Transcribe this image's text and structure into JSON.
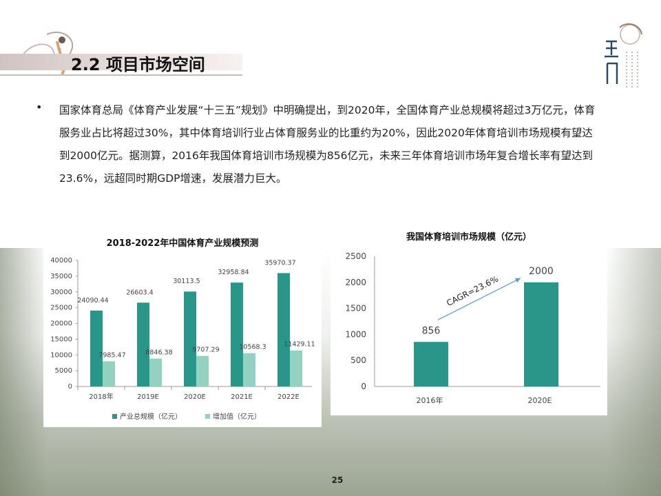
{
  "slide": {
    "title": "2.2 项目市场空间",
    "bullet": "国家体育总局《体育产业发展“十三五”规划》中明确提出，到2020年，全国体育产业总规模将超过3万亿元，体育服务业占比将超过30%，其中体育培训行业占体育服务业的比重约为20%，因此2020年体育培训市场规模有望达到2000亿元。据测算，2016年我国体育培训市场规模为856亿元，未来三年体育培训市场年复合增长率有望达到23.6%，远超同时期GDP增速，发展潜力巨大。",
    "page_number": "25"
  },
  "colors": {
    "teal": "#2a9589",
    "light_teal": "#93d2c1",
    "arrow": "#5b9bd5"
  },
  "chart_data": [
    {
      "type": "bar",
      "title": "2018-2022年中国体育产业规模预测",
      "categories": [
        "2018年",
        "2019E",
        "2020E",
        "2021E",
        "2022E"
      ],
      "series": [
        {
          "name": "产业总规模（亿元）",
          "values": [
            24090.44,
            26603.4,
            30113.5,
            32958.84,
            35970.37
          ],
          "labels": [
            "24090.44",
            "26603.4",
            "30113.5",
            "32958.84",
            "35970.37"
          ]
        },
        {
          "name": "增加值（亿元）",
          "values": [
            7985.47,
            8846.38,
            9707.29,
            10568.3,
            11429.11
          ],
          "labels": [
            "7985.47",
            "8846.38",
            "9707.29",
            "10568.3",
            "11429.11"
          ]
        }
      ],
      "ylim": [
        0,
        40000
      ],
      "yticks": [
        "0",
        "5000",
        "10000",
        "15000",
        "20000",
        "25000",
        "30000",
        "35000",
        "40000"
      ],
      "legend": "bottom"
    },
    {
      "type": "bar",
      "title": "我国体育培训市场规模（亿元）",
      "categories": [
        "2016年",
        "2020E"
      ],
      "values": [
        856,
        2000
      ],
      "labels": [
        "856",
        "2000"
      ],
      "ylim": [
        0,
        2500
      ],
      "yticks": [
        "0",
        "500",
        "1000",
        "1500",
        "2000",
        "2500"
      ],
      "annotation": "CAGR=23.6%"
    }
  ]
}
